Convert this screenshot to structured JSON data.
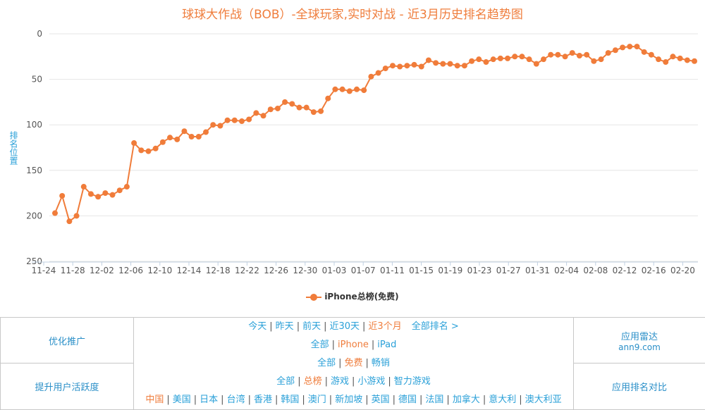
{
  "chart_data": {
    "type": "line",
    "title": "球球大作战（BOB）-全球玩家,实时对战 - 近3月历史排名趋势图",
    "ylabel": "排名位置",
    "xlabel": "",
    "ylim": [
      0,
      250
    ],
    "y_reversed": true,
    "y_ticks": [
      0,
      50,
      100,
      150,
      200,
      250
    ],
    "x_tick_labels": [
      "11-24",
      "11-28",
      "12-02",
      "12-06",
      "12-10",
      "12-14",
      "12-18",
      "12-22",
      "12-26",
      "12-30",
      "01-03",
      "01-07",
      "01-11",
      "01-15",
      "01-19",
      "01-23",
      "01-27",
      "01-31",
      "02-04",
      "02-08",
      "02-12",
      "02-16",
      "02-20"
    ],
    "legend_position": "bottom-center",
    "grid": true,
    "series": [
      {
        "name": "iPhone总榜(免费)",
        "color": "#f07c3a",
        "values": [
          197,
          178,
          206,
          200,
          168,
          176,
          179,
          175,
          177,
          172,
          168,
          120,
          128,
          129,
          126,
          119,
          114,
          116,
          107,
          113,
          113,
          108,
          100,
          101,
          95,
          95,
          96,
          94,
          87,
          90,
          83,
          82,
          75,
          77,
          81,
          81,
          86,
          85,
          71,
          61,
          61,
          63,
          61,
          62,
          47,
          43,
          38,
          35,
          36,
          35,
          34,
          36,
          29,
          32,
          33,
          33,
          35,
          35,
          30,
          28,
          31,
          28,
          27,
          27,
          25,
          25,
          28,
          33,
          28,
          23,
          23,
          25,
          21,
          24,
          23,
          30,
          28,
          21,
          18,
          15,
          14,
          14,
          20,
          23,
          28,
          31,
          25,
          27,
          29,
          30
        ]
      }
    ]
  },
  "nav": {
    "left_top": "优化推广",
    "left_bottom": "提升用户活跃度",
    "right_top_title": "应用雷达",
    "right_top_sub": "ann9.com",
    "right_bottom": "应用排名对比",
    "row1": [
      "今天",
      "昨天",
      "前天",
      "近30天",
      "近3个月"
    ],
    "row1_extra": "全部排名 >",
    "row2": [
      "全部",
      "iPhone",
      "iPad"
    ],
    "row3": [
      "全部",
      "免费",
      "畅销"
    ],
    "row4": [
      "全部",
      "总榜",
      "游戏",
      "小游戏",
      "智力游戏"
    ],
    "row5": [
      "中国",
      "美国",
      "日本",
      "台湾",
      "香港",
      "韩国",
      "澳门",
      "新加坡",
      "英国",
      "德国",
      "法国",
      "加拿大",
      "意大利",
      "澳大利亚"
    ],
    "active_color": "#ef7d3c",
    "link_color": "#2aa0d8"
  }
}
